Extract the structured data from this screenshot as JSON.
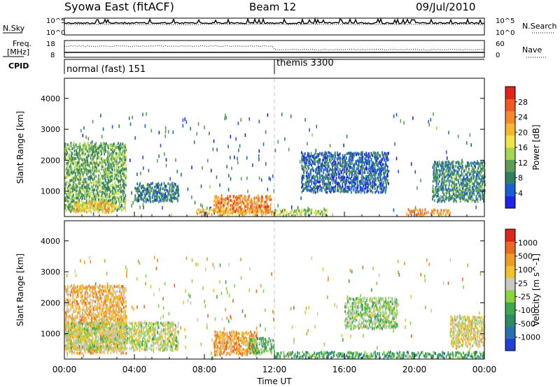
{
  "header": {
    "title": "Syowa East (fitACF)",
    "beam": "Beam 12",
    "date": "09/Jul/2010"
  },
  "top_panels": {
    "nsky": {
      "label": "N.Sky",
      "ticks": [
        "10^5",
        "10^0"
      ]
    },
    "nsearch": {
      "label": "N.Search",
      "ticks": [
        "10^5",
        "10^0"
      ]
    },
    "freq": {
      "label": "Freq.",
      "unit": "[MHz]",
      "ticks": [
        "18",
        "8"
      ]
    },
    "nave": {
      "label": "Nave",
      "ticks": [
        "60",
        "0"
      ]
    },
    "cpid": {
      "label": "CPID",
      "segments": [
        {
          "name": "normal (fast) 151",
          "start_hour": 0,
          "end_hour": 12
        },
        {
          "name": "themis 3300",
          "start_hour": 12,
          "end_hour": 24
        }
      ]
    }
  },
  "chart_data": [
    {
      "type": "heatmap",
      "title": "Power",
      "xlabel": "Time UT",
      "ylabel": "Slant Range [km]",
      "x_ticks": [
        "00:00",
        "04:00",
        "08:00",
        "12:00",
        "16:00",
        "20:00",
        "00:00"
      ],
      "xlim_hours": [
        0,
        24
      ],
      "y_ticks": [
        1000,
        2000,
        3000,
        4000
      ],
      "ylim": [
        180,
        4650
      ],
      "colorbar": {
        "label": "Power [dB]",
        "ticks": [
          "4",
          "8",
          "12",
          "16",
          "20",
          "24",
          "28"
        ],
        "colors": [
          "#1f23e8",
          "#1b5fd6",
          "#2f7f63",
          "#5b9e54",
          "#a6d650",
          "#f3e34a",
          "#f6b633",
          "#f28a2a",
          "#ee5a22",
          "#e02419"
        ]
      },
      "activity_regions": [
        {
          "t0": 0.0,
          "t1": 3.5,
          "r0": 400,
          "r1": 2600,
          "level": 0.35
        },
        {
          "t0": 0.5,
          "t1": 2.8,
          "r0": 350,
          "r1": 700,
          "level": 0.65
        },
        {
          "t0": 4.0,
          "t1": 6.5,
          "r0": 700,
          "r1": 1300,
          "level": 0.2
        },
        {
          "t0": 8.5,
          "t1": 11.8,
          "r0": 350,
          "r1": 900,
          "level": 0.8
        },
        {
          "t0": 7.5,
          "t1": 12.0,
          "r0": 250,
          "r1": 450,
          "level": 0.7
        },
        {
          "t0": 12.0,
          "t1": 15.0,
          "r0": 250,
          "r1": 450,
          "level": 0.45
        },
        {
          "t0": 13.5,
          "t1": 18.5,
          "r0": 1000,
          "r1": 2300,
          "level": 0.15
        },
        {
          "t0": 19.5,
          "t1": 22.0,
          "r0": 250,
          "r1": 450,
          "level": 0.75
        },
        {
          "t0": 21.0,
          "t1": 24.0,
          "r0": 700,
          "r1": 2000,
          "level": 0.25
        }
      ]
    },
    {
      "type": "heatmap",
      "title": "Velocity",
      "xlabel": "Time UT",
      "ylabel": "Slant Range [km]",
      "x_ticks": [
        "00:00",
        "04:00",
        "08:00",
        "12:00",
        "16:00",
        "20:00",
        "00:00"
      ],
      "xlim_hours": [
        0,
        24
      ],
      "y_ticks": [
        1000,
        2000,
        3000,
        4000
      ],
      "ylim": [
        180,
        4650
      ],
      "colorbar": {
        "label": "Velocity [m s^-1]",
        "ticks": [
          "1000",
          "500",
          "100",
          "25",
          "-25",
          "-100",
          "-500",
          "-1000"
        ],
        "colors": [
          "#1f3fd6",
          "#2b6fb0",
          "#2f8a64",
          "#3ea550",
          "#8ad43e",
          "#c8c8c4",
          "#f3c12e",
          "#f09a2a",
          "#e96a22",
          "#e02419"
        ]
      },
      "activity_regions": [
        {
          "t0": 0.0,
          "t1": 3.5,
          "r0": 400,
          "r1": 2600,
          "level": 0.7
        },
        {
          "t0": 0.0,
          "t1": 6.5,
          "r0": 500,
          "r1": 1400,
          "level": 0.52
        },
        {
          "t0": 8.5,
          "t1": 11.0,
          "r0": 350,
          "r1": 1100,
          "level": 0.75
        },
        {
          "t0": 10.5,
          "t1": 12.0,
          "r0": 400,
          "r1": 900,
          "level": 0.4
        },
        {
          "t0": 12.0,
          "t1": 24.0,
          "r0": 250,
          "r1": 450,
          "level": 0.3
        },
        {
          "t0": 16.0,
          "t1": 19.0,
          "r0": 1200,
          "r1": 2200,
          "level": 0.45
        },
        {
          "t0": 22.0,
          "t1": 24.0,
          "r0": 600,
          "r1": 1600,
          "level": 0.6
        }
      ]
    }
  ]
}
